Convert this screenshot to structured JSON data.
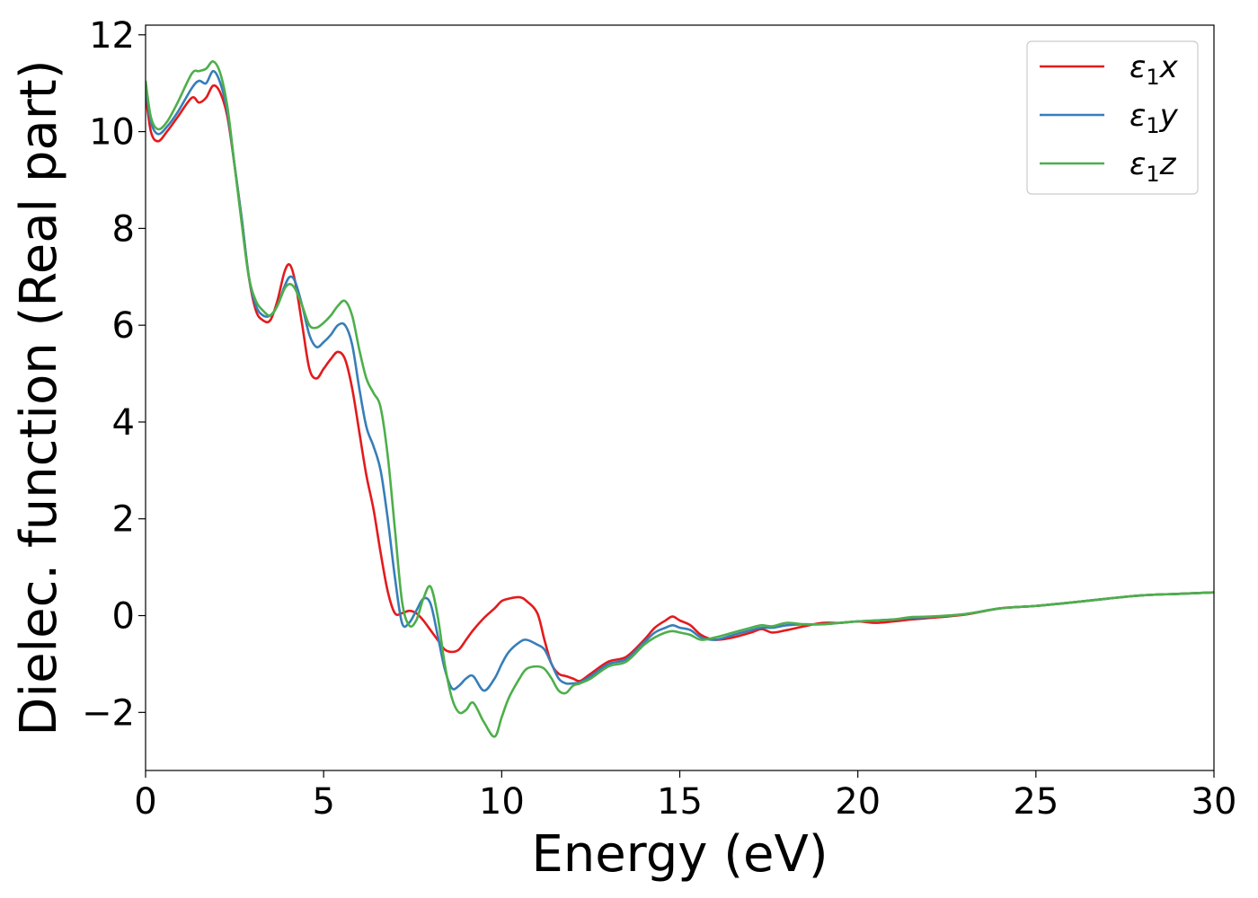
{
  "chart_data": {
    "type": "line",
    "xlabel": "Energy (eV)",
    "ylabel": "Dielec. function (Real part)",
    "xlim": [
      0,
      30
    ],
    "ylim": [
      -3.2,
      12.2
    ],
    "xticks": [
      0,
      5,
      10,
      15,
      20,
      25,
      30
    ],
    "yticks": [
      -2,
      0,
      2,
      4,
      6,
      8,
      10,
      12
    ],
    "xtick_labels": [
      "0",
      "5",
      "10",
      "15",
      "20",
      "25",
      "30"
    ],
    "ytick_labels": [
      "−2",
      "0",
      "2",
      "4",
      "6",
      "8",
      "10",
      "12"
    ],
    "grid": false,
    "legend_position": "top-right",
    "series": [
      {
        "name": "ε₁x",
        "legend_base": "ε",
        "legend_sub": "1",
        "legend_tail": "x",
        "color": "#e41a1c",
        "x": [
          0,
          0.15,
          0.35,
          0.6,
          0.9,
          1.3,
          1.5,
          1.7,
          1.9,
          2.1,
          2.3,
          2.5,
          2.7,
          2.9,
          3.1,
          3.3,
          3.5,
          3.7,
          3.9,
          4.05,
          4.2,
          4.4,
          4.6,
          4.8,
          5.0,
          5.2,
          5.4,
          5.6,
          5.8,
          6.0,
          6.2,
          6.4,
          6.6,
          6.8,
          7.0,
          7.2,
          7.4,
          7.6,
          7.8,
          8.0,
          8.2,
          8.4,
          8.6,
          8.8,
          9.0,
          9.2,
          9.5,
          9.8,
          10.0,
          10.2,
          10.5,
          10.7,
          11.0,
          11.2,
          11.4,
          11.6,
          11.8,
          12.0,
          12.2,
          12.5,
          13.0,
          13.5,
          14.0,
          14.3,
          14.6,
          14.8,
          15.0,
          15.3,
          15.6,
          16.0,
          16.5,
          17.0,
          17.3,
          17.6,
          18.0,
          18.5,
          19.0,
          19.5,
          20.0,
          20.5,
          21.0,
          21.5,
          22.0,
          23.0,
          24.0,
          25.0,
          26.0,
          27.0,
          28.0,
          29.0,
          30.0
        ],
        "y": [
          10.8,
          10.0,
          9.8,
          10.0,
          10.3,
          10.7,
          10.6,
          10.7,
          10.95,
          10.8,
          10.3,
          9.3,
          8.2,
          7.0,
          6.3,
          6.1,
          6.1,
          6.5,
          7.1,
          7.25,
          6.9,
          6.0,
          5.1,
          4.9,
          5.1,
          5.3,
          5.45,
          5.3,
          4.7,
          3.8,
          2.9,
          2.2,
          1.3,
          0.5,
          0.05,
          0.05,
          0.1,
          0.05,
          -0.1,
          -0.3,
          -0.5,
          -0.7,
          -0.75,
          -0.7,
          -0.5,
          -0.3,
          -0.05,
          0.15,
          0.3,
          0.35,
          0.38,
          0.3,
          0.05,
          -0.5,
          -1.0,
          -1.2,
          -1.25,
          -1.3,
          -1.35,
          -1.2,
          -0.95,
          -0.85,
          -0.5,
          -0.25,
          -0.1,
          -0.02,
          -0.1,
          -0.2,
          -0.4,
          -0.5,
          -0.45,
          -0.35,
          -0.28,
          -0.35,
          -0.3,
          -0.22,
          -0.15,
          -0.15,
          -0.12,
          -0.15,
          -0.12,
          -0.08,
          -0.05,
          0.02,
          0.15,
          0.2,
          0.27,
          0.35,
          0.42,
          0.45,
          0.48
        ]
      },
      {
        "name": "ε₁y",
        "legend_base": "ε",
        "legend_sub": "1",
        "legend_tail": "y",
        "color": "#377eb8",
        "x": [
          0,
          0.15,
          0.35,
          0.6,
          0.9,
          1.3,
          1.5,
          1.7,
          1.9,
          2.1,
          2.3,
          2.5,
          2.7,
          2.9,
          3.1,
          3.3,
          3.5,
          3.7,
          3.9,
          4.05,
          4.2,
          4.4,
          4.6,
          4.8,
          5.0,
          5.2,
          5.4,
          5.6,
          5.8,
          6.0,
          6.2,
          6.4,
          6.6,
          6.8,
          7.0,
          7.2,
          7.4,
          7.6,
          7.8,
          8.0,
          8.2,
          8.4,
          8.6,
          8.8,
          9.0,
          9.2,
          9.5,
          9.8,
          10.0,
          10.2,
          10.5,
          10.7,
          11.0,
          11.2,
          11.4,
          11.6,
          11.8,
          12.0,
          12.2,
          12.5,
          13.0,
          13.5,
          14.0,
          14.3,
          14.6,
          14.8,
          15.0,
          15.3,
          15.6,
          16.0,
          16.5,
          17.0,
          17.3,
          17.6,
          18.0,
          18.5,
          19.0,
          19.5,
          20.0,
          20.5,
          21.0,
          21.5,
          22.0,
          23.0,
          24.0,
          25.0,
          26.0,
          27.0,
          28.0,
          29.0,
          30.0
        ],
        "y": [
          10.95,
          10.2,
          9.95,
          10.1,
          10.4,
          10.9,
          11.05,
          11.0,
          11.25,
          11.0,
          10.4,
          9.3,
          8.2,
          7.0,
          6.4,
          6.2,
          6.2,
          6.4,
          6.8,
          7.0,
          6.9,
          6.4,
          5.8,
          5.55,
          5.65,
          5.8,
          6.0,
          6.0,
          5.6,
          4.7,
          3.9,
          3.5,
          3.0,
          2.0,
          0.8,
          -0.15,
          -0.15,
          0.1,
          0.35,
          0.25,
          -0.4,
          -1.1,
          -1.5,
          -1.45,
          -1.3,
          -1.25,
          -1.55,
          -1.3,
          -1.0,
          -0.75,
          -0.55,
          -0.5,
          -0.6,
          -0.7,
          -1.0,
          -1.3,
          -1.4,
          -1.4,
          -1.38,
          -1.25,
          -1.0,
          -0.9,
          -0.55,
          -0.35,
          -0.25,
          -0.2,
          -0.25,
          -0.3,
          -0.45,
          -0.5,
          -0.4,
          -0.3,
          -0.25,
          -0.25,
          -0.2,
          -0.18,
          -0.18,
          -0.15,
          -0.12,
          -0.1,
          -0.08,
          -0.05,
          -0.03,
          0.03,
          0.15,
          0.2,
          0.27,
          0.35,
          0.42,
          0.45,
          0.48
        ]
      },
      {
        "name": "ε₁z",
        "legend_base": "ε",
        "legend_sub": "1",
        "legend_tail": "z",
        "color": "#4daf4a",
        "x": [
          0,
          0.15,
          0.35,
          0.6,
          0.9,
          1.3,
          1.5,
          1.7,
          1.9,
          2.1,
          2.3,
          2.5,
          2.7,
          2.9,
          3.1,
          3.3,
          3.5,
          3.7,
          3.9,
          4.05,
          4.2,
          4.4,
          4.6,
          4.8,
          5.0,
          5.2,
          5.4,
          5.6,
          5.8,
          6.0,
          6.2,
          6.4,
          6.6,
          6.8,
          7.0,
          7.2,
          7.4,
          7.6,
          7.8,
          8.0,
          8.2,
          8.4,
          8.6,
          8.8,
          9.0,
          9.2,
          9.5,
          9.8,
          10.0,
          10.2,
          10.5,
          10.7,
          11.0,
          11.2,
          11.4,
          11.6,
          11.8,
          12.0,
          12.2,
          12.5,
          13.0,
          13.5,
          14.0,
          14.3,
          14.6,
          14.8,
          15.0,
          15.3,
          15.6,
          16.0,
          16.5,
          17.0,
          17.3,
          17.6,
          18.0,
          18.5,
          19.0,
          19.5,
          20.0,
          20.5,
          21.0,
          21.5,
          22.0,
          23.0,
          24.0,
          25.0,
          26.0,
          27.0,
          28.0,
          29.0,
          30.0
        ],
        "y": [
          11.05,
          10.3,
          10.05,
          10.2,
          10.6,
          11.2,
          11.25,
          11.3,
          11.45,
          11.2,
          10.5,
          9.3,
          8.1,
          7.0,
          6.5,
          6.3,
          6.2,
          6.4,
          6.75,
          6.85,
          6.75,
          6.4,
          6.0,
          5.95,
          6.05,
          6.2,
          6.4,
          6.5,
          6.2,
          5.5,
          4.9,
          4.6,
          4.3,
          3.3,
          1.8,
          0.3,
          -0.2,
          -0.1,
          0.35,
          0.6,
          0.0,
          -1.0,
          -1.7,
          -2.0,
          -1.95,
          -1.8,
          -2.2,
          -2.5,
          -2.1,
          -1.7,
          -1.3,
          -1.1,
          -1.05,
          -1.1,
          -1.3,
          -1.55,
          -1.6,
          -1.45,
          -1.4,
          -1.3,
          -1.05,
          -0.95,
          -0.6,
          -0.45,
          -0.35,
          -0.32,
          -0.35,
          -0.4,
          -0.5,
          -0.45,
          -0.35,
          -0.25,
          -0.2,
          -0.22,
          -0.15,
          -0.18,
          -0.18,
          -0.15,
          -0.12,
          -0.1,
          -0.08,
          -0.03,
          -0.02,
          0.03,
          0.15,
          0.2,
          0.27,
          0.35,
          0.42,
          0.45,
          0.48
        ]
      }
    ]
  }
}
